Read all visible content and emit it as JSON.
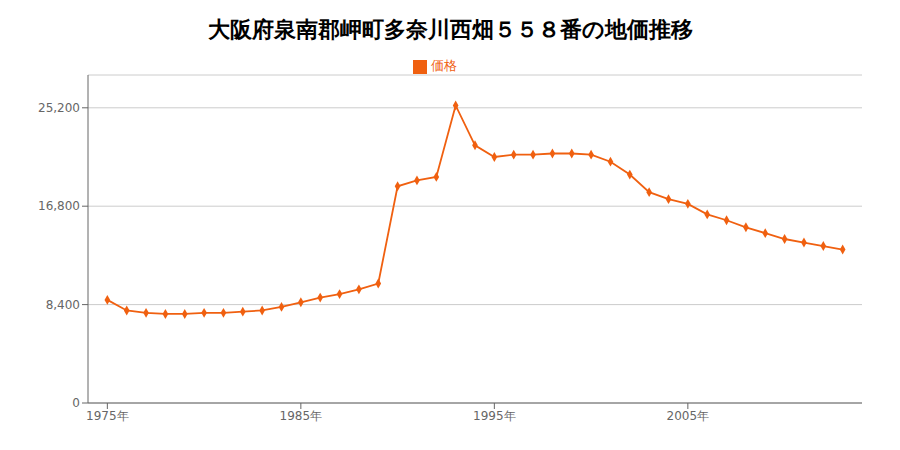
{
  "chart_data": {
    "type": "line",
    "title": "大阪府泉南郡岬町多奈川西畑５５８番の地価推移",
    "x": [
      1975,
      1976,
      1977,
      1978,
      1979,
      1980,
      1981,
      1982,
      1983,
      1984,
      1985,
      1986,
      1987,
      1988,
      1989,
      1990,
      1991,
      1992,
      1993,
      1994,
      1995,
      1996,
      1997,
      1998,
      1999,
      2000,
      2001,
      2002,
      2003,
      2004,
      2005,
      2006,
      2007,
      2008,
      2009,
      2010,
      2011,
      2012,
      2013
    ],
    "series": [
      {
        "name": "価格",
        "color": "#f06010",
        "marker": "diamond",
        "values": [
          8800,
          7900,
          7700,
          7600,
          7600,
          7700,
          7700,
          7800,
          7900,
          8200,
          8600,
          9000,
          9300,
          9700,
          10200,
          18500,
          19000,
          19300,
          25400,
          22000,
          21000,
          21200,
          21200,
          21300,
          21300,
          21200,
          20600,
          19500,
          18000,
          17400,
          17000,
          16100,
          15600,
          15000,
          14500,
          14000,
          13700,
          13400,
          13100
        ]
      }
    ],
    "xlim": [
      1974,
      2014
    ],
    "xticks": [
      {
        "value": 1975,
        "label": "1975年"
      },
      {
        "value": 1985,
        "label": "1985年"
      },
      {
        "value": 1995,
        "label": "1995年"
      },
      {
        "value": 2005,
        "label": "2005年"
      }
    ],
    "ylim": [
      0,
      28000
    ],
    "yticks": [
      0,
      {
        "value": 8400,
        "label": "8,400"
      },
      {
        "value": 16800,
        "label": "16,800"
      },
      {
        "value": 25200,
        "label": "25,200"
      }
    ],
    "grid": "y",
    "legend": "top"
  }
}
